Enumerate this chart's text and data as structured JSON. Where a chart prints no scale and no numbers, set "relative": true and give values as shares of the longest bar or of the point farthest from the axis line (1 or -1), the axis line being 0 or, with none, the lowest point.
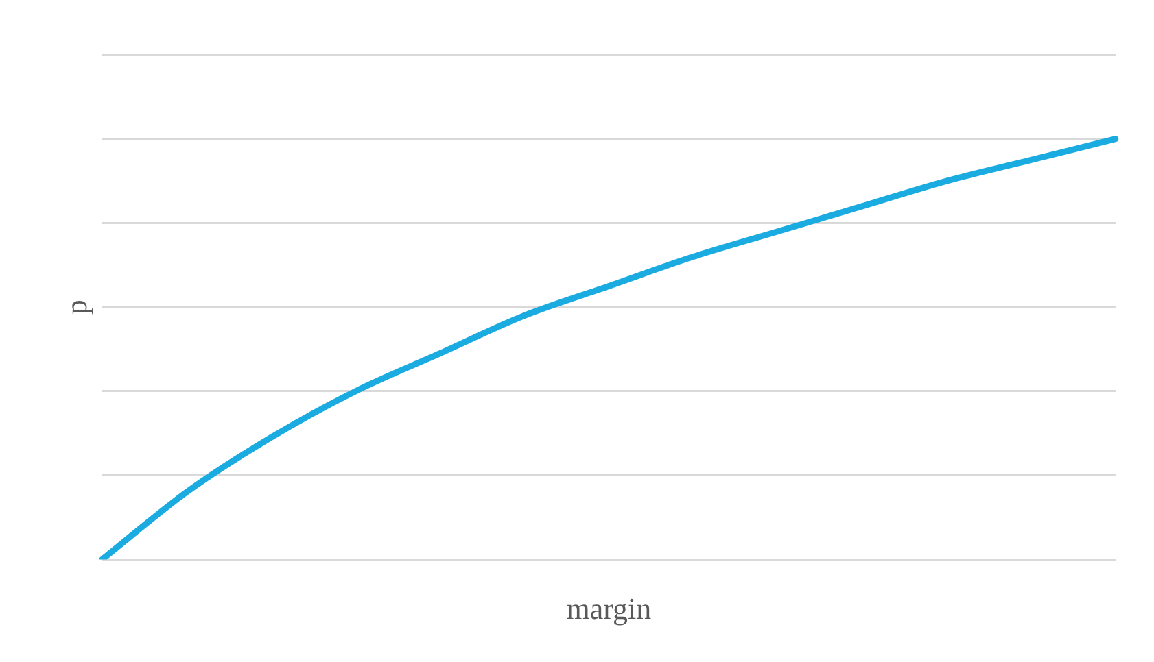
{
  "chart_data": {
    "type": "line",
    "relative": true,
    "xlabel": "margin",
    "ylabel": "p",
    "grid": "y",
    "legend": false,
    "marker": "none",
    "line_style": "solid",
    "categories": [
      null,
      null,
      null,
      null,
      null,
      null,
      null,
      null,
      null,
      null,
      null,
      null,
      null
    ],
    "series": [
      {
        "color": "#1aabe0",
        "values": [
          0,
          0.16,
          0.29,
          0.4,
          0.49,
          0.58,
          0.65,
          0.72,
          0.78,
          0.84,
          0.9,
          0.95,
          1
        ]
      }
    ]
  }
}
